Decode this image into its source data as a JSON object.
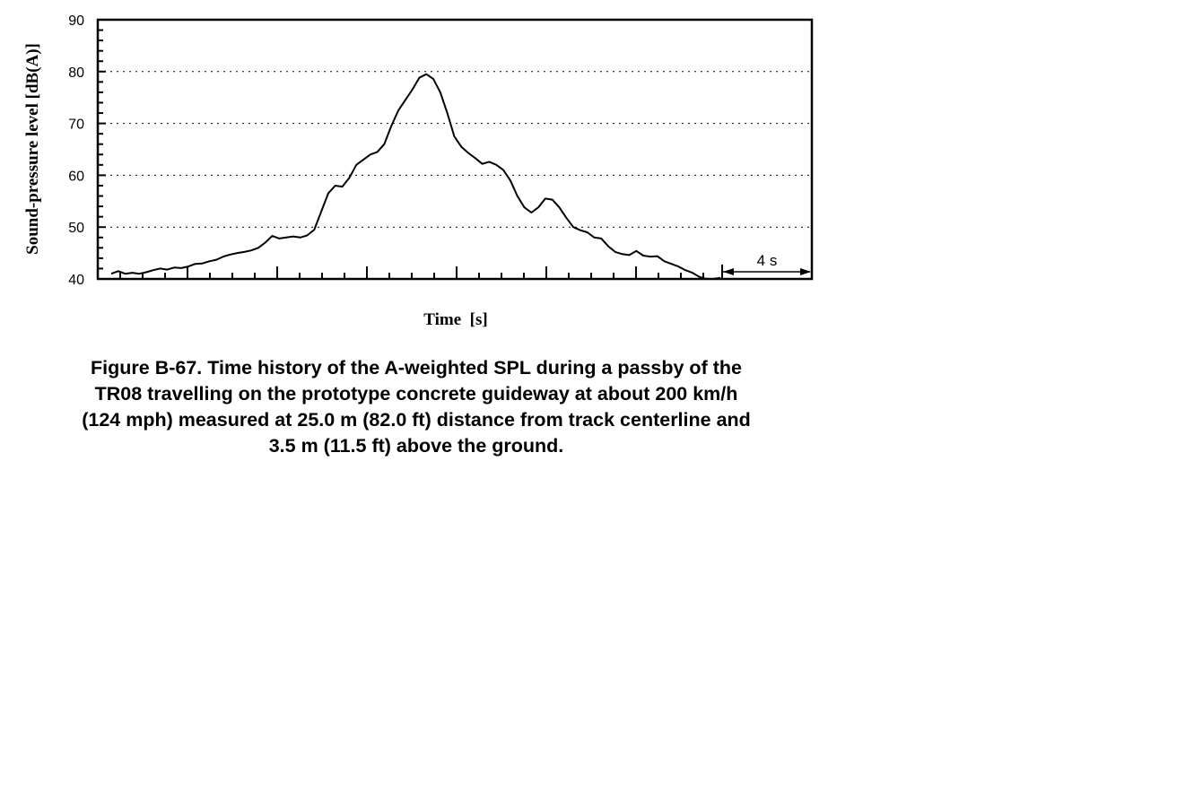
{
  "chart_data": {
    "type": "line",
    "title": "",
    "xlabel": "Time  [s]",
    "ylabel": "Sound-pressure level [dB(A)]",
    "ylim": [
      40,
      90
    ],
    "yticks": [
      "40",
      "50",
      "60",
      "70",
      "80",
      "90"
    ],
    "x_axis_tick_labels": "none (scale bar only)",
    "scale_bar_label": "4 s",
    "grid": "horizontal dotted at 50, 60, 70, 80",
    "series": [
      {
        "color": "#000000",
        "points": [
          [
            0,
            41.0
          ],
          [
            0.4,
            41.5
          ],
          [
            0.8,
            41.0
          ],
          [
            1.2,
            41.2
          ],
          [
            1.6,
            41.0
          ],
          [
            2.0,
            41.3
          ],
          [
            2.4,
            41.7
          ],
          [
            2.8,
            42.0
          ],
          [
            3.2,
            41.8
          ],
          [
            3.6,
            42.2
          ],
          [
            4.0,
            42.1
          ],
          [
            4.4,
            42.4
          ],
          [
            4.8,
            42.9
          ],
          [
            5.2,
            43.0
          ],
          [
            5.6,
            43.4
          ],
          [
            6.0,
            43.7
          ],
          [
            6.4,
            44.3
          ],
          [
            6.8,
            44.7
          ],
          [
            7.2,
            45.0
          ],
          [
            7.6,
            45.2
          ],
          [
            8.0,
            45.5
          ],
          [
            8.4,
            46.0
          ],
          [
            8.8,
            47.0
          ],
          [
            9.2,
            48.3
          ],
          [
            9.6,
            47.8
          ],
          [
            10.0,
            48.0
          ],
          [
            10.4,
            48.2
          ],
          [
            10.8,
            48.0
          ],
          [
            11.2,
            48.4
          ],
          [
            11.6,
            49.5
          ],
          [
            12.0,
            53.0
          ],
          [
            12.4,
            56.5
          ],
          [
            12.8,
            58.0
          ],
          [
            13.2,
            57.8
          ],
          [
            13.6,
            59.5
          ],
          [
            14.0,
            62.0
          ],
          [
            14.4,
            63.0
          ],
          [
            14.8,
            64.0
          ],
          [
            15.2,
            64.5
          ],
          [
            15.6,
            66.0
          ],
          [
            16.0,
            69.5
          ],
          [
            16.4,
            72.5
          ],
          [
            16.8,
            74.5
          ],
          [
            17.2,
            76.5
          ],
          [
            17.6,
            78.8
          ],
          [
            18.0,
            79.5
          ],
          [
            18.4,
            78.6
          ],
          [
            18.8,
            76.0
          ],
          [
            19.2,
            72.0
          ],
          [
            19.6,
            67.5
          ],
          [
            20.0,
            65.5
          ],
          [
            20.4,
            64.3
          ],
          [
            20.8,
            63.3
          ],
          [
            21.2,
            62.2
          ],
          [
            21.6,
            62.6
          ],
          [
            22.0,
            62.0
          ],
          [
            22.4,
            61.0
          ],
          [
            22.8,
            59.0
          ],
          [
            23.2,
            56.0
          ],
          [
            23.6,
            53.8
          ],
          [
            24.0,
            52.8
          ],
          [
            24.4,
            53.8
          ],
          [
            24.8,
            55.5
          ],
          [
            25.2,
            55.3
          ],
          [
            25.6,
            53.8
          ],
          [
            26.0,
            51.8
          ],
          [
            26.4,
            50.0
          ],
          [
            26.8,
            49.4
          ],
          [
            27.2,
            49.0
          ],
          [
            27.6,
            48.0
          ],
          [
            28.0,
            47.8
          ],
          [
            28.4,
            46.3
          ],
          [
            28.8,
            45.2
          ],
          [
            29.2,
            44.8
          ],
          [
            29.6,
            44.6
          ],
          [
            30.0,
            45.4
          ],
          [
            30.4,
            44.5
          ],
          [
            30.8,
            44.3
          ],
          [
            31.2,
            44.4
          ],
          [
            31.6,
            43.4
          ],
          [
            32.0,
            42.9
          ],
          [
            32.4,
            42.4
          ],
          [
            32.8,
            41.7
          ],
          [
            33.2,
            41.2
          ],
          [
            33.6,
            40.4
          ],
          [
            34.0,
            40.0
          ],
          [
            34.4,
            40.0
          ],
          [
            34.8,
            40.2
          ]
        ]
      }
    ]
  },
  "caption": {
    "line1": "Figure B-67.  Time history of the A-weighted SPL during a passby of the",
    "line2": "TR08 travelling on the prototype concrete guideway at about 200 km/h",
    "line3": "(124 mph) measured at 25.0 m (82.0 ft) distance from track centerline and",
    "line4": "3.5 m (11.5 ft) above the ground."
  }
}
